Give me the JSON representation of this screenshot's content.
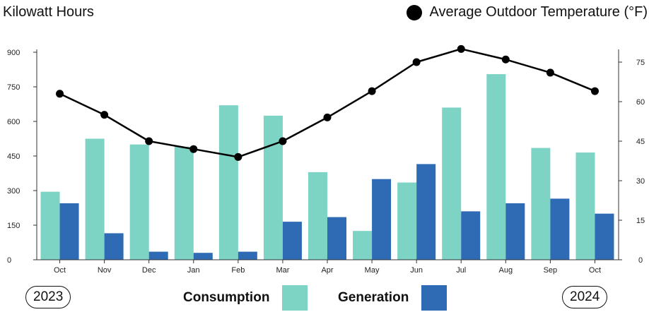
{
  "header": {
    "left_title": "Kilowatt Hours",
    "temp_legend_label": "Average Outdoor Temperature (°F)"
  },
  "years": {
    "start": "2023",
    "end": "2024"
  },
  "legend": {
    "consumption": "Consumption",
    "generation": "Generation"
  },
  "colors": {
    "consumption": "#7dd3c4",
    "generation": "#2f6bb5",
    "temperature": "#000000"
  },
  "chart_data": {
    "type": "bar",
    "categories": [
      "Oct",
      "Nov",
      "Dec",
      "Jan",
      "Feb",
      "Mar",
      "Apr",
      "May",
      "Jun",
      "Jul",
      "Aug",
      "Sep",
      "Oct"
    ],
    "series": [
      {
        "name": "Consumption",
        "values": [
          295,
          525,
          500,
          490,
          670,
          625,
          380,
          125,
          335,
          660,
          805,
          485,
          465
        ]
      },
      {
        "name": "Generation",
        "values": [
          245,
          115,
          35,
          30,
          35,
          165,
          185,
          350,
          415,
          210,
          245,
          265,
          200
        ]
      }
    ],
    "line_series": {
      "name": "Average Outdoor Temperature (°F)",
      "values": [
        63,
        55,
        45,
        42,
        39,
        45,
        54,
        64,
        75,
        80,
        76,
        71,
        64
      ]
    },
    "ylabel": "Kilowatt Hours",
    "ylim": [
      0,
      900
    ],
    "yticks": [
      "0",
      "150",
      "300",
      "450",
      "600",
      "750",
      "900"
    ],
    "y2label": "Average Outdoor Temperature (°F)",
    "y2lim": [
      0,
      75
    ],
    "y2ticks": [
      "0",
      "15",
      "30",
      "45",
      "60",
      "75"
    ],
    "grid": false,
    "legend_position": "bottom"
  }
}
